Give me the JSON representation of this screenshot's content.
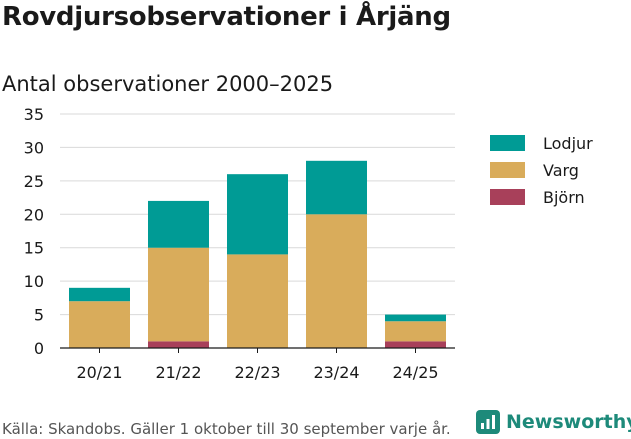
{
  "title": "Rovdjursobservationer i Årjäng",
  "subtitle": "Antal observationer 2000–2025",
  "footer": "Källa: Skandobs. Gäller 1 oktober till 30 september varje år.",
  "brand": {
    "name": "Newsworthy",
    "color": "#1d8a7a",
    "icon": "newsworthy-logo-icon"
  },
  "chart_data": {
    "type": "bar",
    "stacked": true,
    "categories": [
      "20/21",
      "21/22",
      "22/23",
      "23/24",
      "24/25"
    ],
    "series": [
      {
        "name": "Björn",
        "color": "#a8405a",
        "values": [
          0,
          1,
          0,
          0,
          1
        ]
      },
      {
        "name": "Varg",
        "color": "#d9ac5b",
        "values": [
          7,
          14,
          14,
          20,
          3
        ]
      },
      {
        "name": "Lodjur",
        "color": "#009b95",
        "values": [
          2,
          7,
          12,
          8,
          1
        ]
      }
    ],
    "legend_order": [
      "Lodjur",
      "Varg",
      "Björn"
    ],
    "legend_position": "right",
    "ylim": [
      0,
      35
    ],
    "yticks": [
      0,
      5,
      10,
      15,
      20,
      25,
      30,
      35
    ],
    "grid": true,
    "xlabel": "",
    "ylabel": ""
  }
}
